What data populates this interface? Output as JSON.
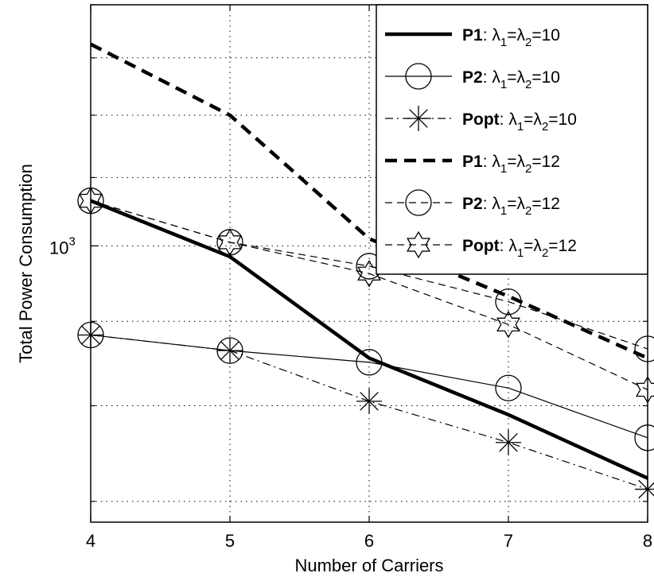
{
  "chart_data": {
    "type": "line",
    "title": "",
    "xlabel": "Number of Carriers",
    "ylabel": "Total Power Consumption",
    "xlim": [
      4,
      8
    ],
    "ylim": [
      680,
      1400
    ],
    "yscale": "log",
    "grid": true,
    "legend_position": "top-right",
    "x_ticks": [
      "4",
      "5",
      "6",
      "7",
      "8"
    ],
    "y_tick_label": {
      "base": "10",
      "exp": "3",
      "value": 1000
    },
    "series": [
      {
        "name_bold": "P1",
        "name_rest": ": λ",
        "lambda_value": "10",
        "style": "thick-solid",
        "marker": "none",
        "x": [
          4,
          5,
          6,
          7,
          8
        ],
        "y": [
          1065,
          985,
          855,
          790,
          723
        ]
      },
      {
        "name_bold": "P2",
        "name_rest": ": λ",
        "lambda_value": "10",
        "style": "thin-solid",
        "marker": "circle",
        "x": [
          4,
          5,
          6,
          7,
          8
        ],
        "y": [
          883,
          864,
          850,
          820,
          765
        ]
      },
      {
        "name_bold": "Popt",
        "name_rest": ": λ",
        "lambda_value": "10",
        "style": "dash-dot",
        "marker": "asterisk",
        "x": [
          4,
          5,
          6,
          7,
          8
        ],
        "y": [
          883,
          864,
          805,
          760,
          712
        ]
      },
      {
        "name_bold": "P1",
        "name_rest": ": λ",
        "lambda_value": "12",
        "style": "thick-dashed",
        "marker": "none",
        "x": [
          4,
          5,
          6,
          7,
          8
        ],
        "y": [
          1325,
          1200,
          1010,
          932,
          855
        ]
      },
      {
        "name_bold": "P2",
        "name_rest": ": λ",
        "lambda_value": "12",
        "style": "thin-dashed",
        "marker": "circle",
        "x": [
          4,
          5,
          6,
          7,
          8
        ],
        "y": [
          1065,
          1005,
          972,
          925,
          866
        ]
      },
      {
        "name_bold": "Popt",
        "name_rest": ": λ",
        "lambda_value": "12",
        "style": "thin-dashed",
        "marker": "hexagram",
        "x": [
          4,
          5,
          6,
          7,
          8
        ],
        "y": [
          1065,
          1005,
          962,
          896,
          818
        ]
      }
    ],
    "legend_subscripts": [
      "1",
      "2"
    ]
  }
}
